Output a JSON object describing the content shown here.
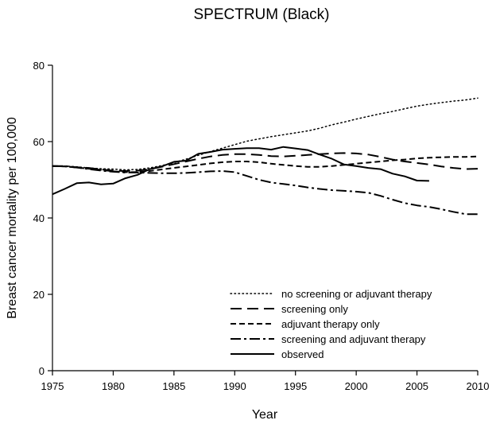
{
  "chart_data": {
    "type": "line",
    "title": "SPECTRUM (Black)",
    "xlabel": "Year",
    "ylabel": "Breast cancer mortality per 100,000",
    "xlim": [
      1975,
      2010
    ],
    "ylim": [
      0,
      80
    ],
    "xticks": [
      1975,
      1980,
      1985,
      1990,
      1995,
      2000,
      2005,
      2010
    ],
    "yticks": [
      0,
      20,
      40,
      60,
      80
    ],
    "grid": false,
    "legend_position": "bottom-right",
    "series": [
      {
        "name": "no screening or adjuvant therapy",
        "style": "dotted",
        "x": [
          1975,
          1976,
          1977,
          1978,
          1979,
          1980,
          1981,
          1982,
          1983,
          1984,
          1985,
          1986,
          1987,
          1988,
          1989,
          1990,
          1991,
          1992,
          1993,
          1994,
          1995,
          1996,
          1997,
          1998,
          1999,
          2000,
          2001,
          2002,
          2003,
          2004,
          2005,
          2006,
          2007,
          2008,
          2009,
          2010
        ],
        "values": [
          53.6,
          53.6,
          53.4,
          53.1,
          52.9,
          52.8,
          52.6,
          52.7,
          53.1,
          53.7,
          54.5,
          55.4,
          56.4,
          57.4,
          58.3,
          59.2,
          60.1,
          60.7,
          61.3,
          61.8,
          62.3,
          62.8,
          63.5,
          64.4,
          65.1,
          65.9,
          66.6,
          67.3,
          67.9,
          68.6,
          69.3,
          69.8,
          70.2,
          70.6,
          70.9,
          71.4
        ]
      },
      {
        "name": "screening only",
        "style": "long-dash",
        "x": [
          1975,
          1976,
          1977,
          1978,
          1979,
          1980,
          1981,
          1982,
          1983,
          1984,
          1985,
          1986,
          1987,
          1988,
          1989,
          1990,
          1991,
          1992,
          1993,
          1994,
          1995,
          1996,
          1997,
          1998,
          1999,
          2000,
          2001,
          2002,
          2003,
          2004,
          2005,
          2006,
          2007,
          2008,
          2009,
          2010
        ],
        "values": [
          53.6,
          53.5,
          53.3,
          53.1,
          52.7,
          52.4,
          52.3,
          52.4,
          52.8,
          53.4,
          54.1,
          54.8,
          55.5,
          56.1,
          56.5,
          56.7,
          56.7,
          56.5,
          56.2,
          56.1,
          56.3,
          56.5,
          56.7,
          56.9,
          57.0,
          56.9,
          56.6,
          56.0,
          55.3,
          54.8,
          54.4,
          54.0,
          53.5,
          53.1,
          52.8,
          52.9
        ]
      },
      {
        "name": "adjuvant therapy only",
        "style": "short-dash",
        "x": [
          1975,
          1976,
          1977,
          1978,
          1979,
          1980,
          1981,
          1982,
          1983,
          1984,
          1985,
          1986,
          1987,
          1988,
          1989,
          1990,
          1991,
          1992,
          1993,
          1994,
          1995,
          1996,
          1997,
          1998,
          1999,
          2000,
          2001,
          2002,
          2003,
          2004,
          2005,
          2006,
          2007,
          2008,
          2009,
          2010
        ],
        "values": [
          53.6,
          53.5,
          53.2,
          52.9,
          52.6,
          52.2,
          52.0,
          52.0,
          52.3,
          52.7,
          53.1,
          53.5,
          53.9,
          54.3,
          54.6,
          54.8,
          54.8,
          54.6,
          54.2,
          53.9,
          53.6,
          53.4,
          53.4,
          53.6,
          53.9,
          54.2,
          54.5,
          54.8,
          55.1,
          55.3,
          55.6,
          55.8,
          55.9,
          56.0,
          56.0,
          56.1
        ]
      },
      {
        "name": "screening and adjuvant therapy",
        "style": "dash-dot",
        "x": [
          1975,
          1976,
          1977,
          1978,
          1979,
          1980,
          1981,
          1982,
          1983,
          1984,
          1985,
          1986,
          1987,
          1988,
          1989,
          1990,
          1991,
          1992,
          1993,
          1994,
          1995,
          1996,
          1997,
          1998,
          1999,
          2000,
          2001,
          2002,
          2003,
          2004,
          2005,
          2006,
          2007,
          2008,
          2009,
          2010
        ],
        "values": [
          53.6,
          53.6,
          53.2,
          52.8,
          52.4,
          52.1,
          51.9,
          51.9,
          51.8,
          51.7,
          51.7,
          51.8,
          52.0,
          52.2,
          52.3,
          52.0,
          51.0,
          50.0,
          49.3,
          48.9,
          48.5,
          48.0,
          47.6,
          47.3,
          47.1,
          46.9,
          46.6,
          45.8,
          44.8,
          43.9,
          43.3,
          42.9,
          42.3,
          41.6,
          41.0,
          41.0
        ]
      },
      {
        "name": "observed",
        "style": "solid",
        "x": [
          1975,
          1976,
          1977,
          1978,
          1979,
          1980,
          1981,
          1982,
          1983,
          1984,
          1985,
          1986,
          1987,
          1988,
          1989,
          1990,
          1991,
          1992,
          1993,
          1994,
          1995,
          1996,
          1997,
          1998,
          1999,
          2000,
          2001,
          2002,
          2003,
          2004,
          2005,
          2006
        ],
        "values": [
          46.2,
          47.6,
          49.1,
          49.3,
          48.8,
          49.0,
          50.4,
          51.3,
          52.8,
          53.5,
          54.7,
          55.0,
          56.8,
          57.3,
          57.9,
          58.1,
          58.3,
          58.3,
          57.9,
          58.6,
          58.2,
          57.8,
          56.6,
          55.5,
          54.0,
          53.6,
          53.1,
          52.8,
          51.6,
          50.9,
          49.8,
          49.7
        ]
      }
    ]
  }
}
